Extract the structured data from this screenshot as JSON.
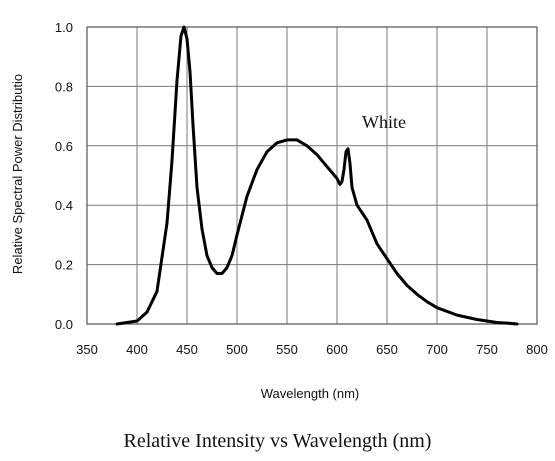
{
  "chart_data": {
    "type": "line",
    "ylabel": "Relative Spectral Power Distributio",
    "xlabel": "Wavelength (nm)",
    "caption": "Relative Intensity vs Wavelength (nm)",
    "annotation": {
      "text": "White",
      "x": 625,
      "y": 0.66
    },
    "xlim": [
      350,
      800
    ],
    "ylim": [
      0,
      1.0
    ],
    "x_ticks": [
      350,
      400,
      450,
      500,
      550,
      600,
      650,
      700,
      750,
      800
    ],
    "y_ticks": [
      0.0,
      0.2,
      0.4,
      0.6,
      0.8,
      1.0
    ],
    "x_tick_labels": [
      "350",
      "400",
      "450",
      "500",
      "550",
      "600",
      "650",
      "700",
      "750",
      "800"
    ],
    "y_tick_labels": [
      "0.0",
      "0.2",
      "0.4",
      "0.6",
      "0.8",
      "1.0"
    ],
    "grid": true,
    "line_color": "#000000",
    "series": [
      {
        "x": [
          380,
          390,
          400,
          410,
          420,
          430,
          435,
          440,
          444,
          447,
          450,
          453,
          456,
          460,
          465,
          470,
          475,
          480,
          485,
          490,
          495,
          500,
          510,
          520,
          530,
          540,
          550,
          555,
          560,
          570,
          580,
          590,
          600,
          603,
          605,
          607,
          609,
          611,
          613,
          615,
          620,
          630,
          640,
          650,
          660,
          670,
          680,
          690,
          700,
          720,
          740,
          760,
          770,
          780
        ],
        "y": [
          0.0,
          0.005,
          0.01,
          0.04,
          0.11,
          0.34,
          0.55,
          0.82,
          0.97,
          1.0,
          0.96,
          0.85,
          0.67,
          0.46,
          0.32,
          0.23,
          0.19,
          0.17,
          0.17,
          0.19,
          0.23,
          0.3,
          0.43,
          0.52,
          0.58,
          0.61,
          0.62,
          0.62,
          0.62,
          0.6,
          0.57,
          0.53,
          0.49,
          0.47,
          0.48,
          0.52,
          0.58,
          0.59,
          0.54,
          0.46,
          0.4,
          0.35,
          0.27,
          0.22,
          0.17,
          0.13,
          0.1,
          0.075,
          0.055,
          0.03,
          0.015,
          0.005,
          0.003,
          0.0
        ]
      }
    ]
  }
}
